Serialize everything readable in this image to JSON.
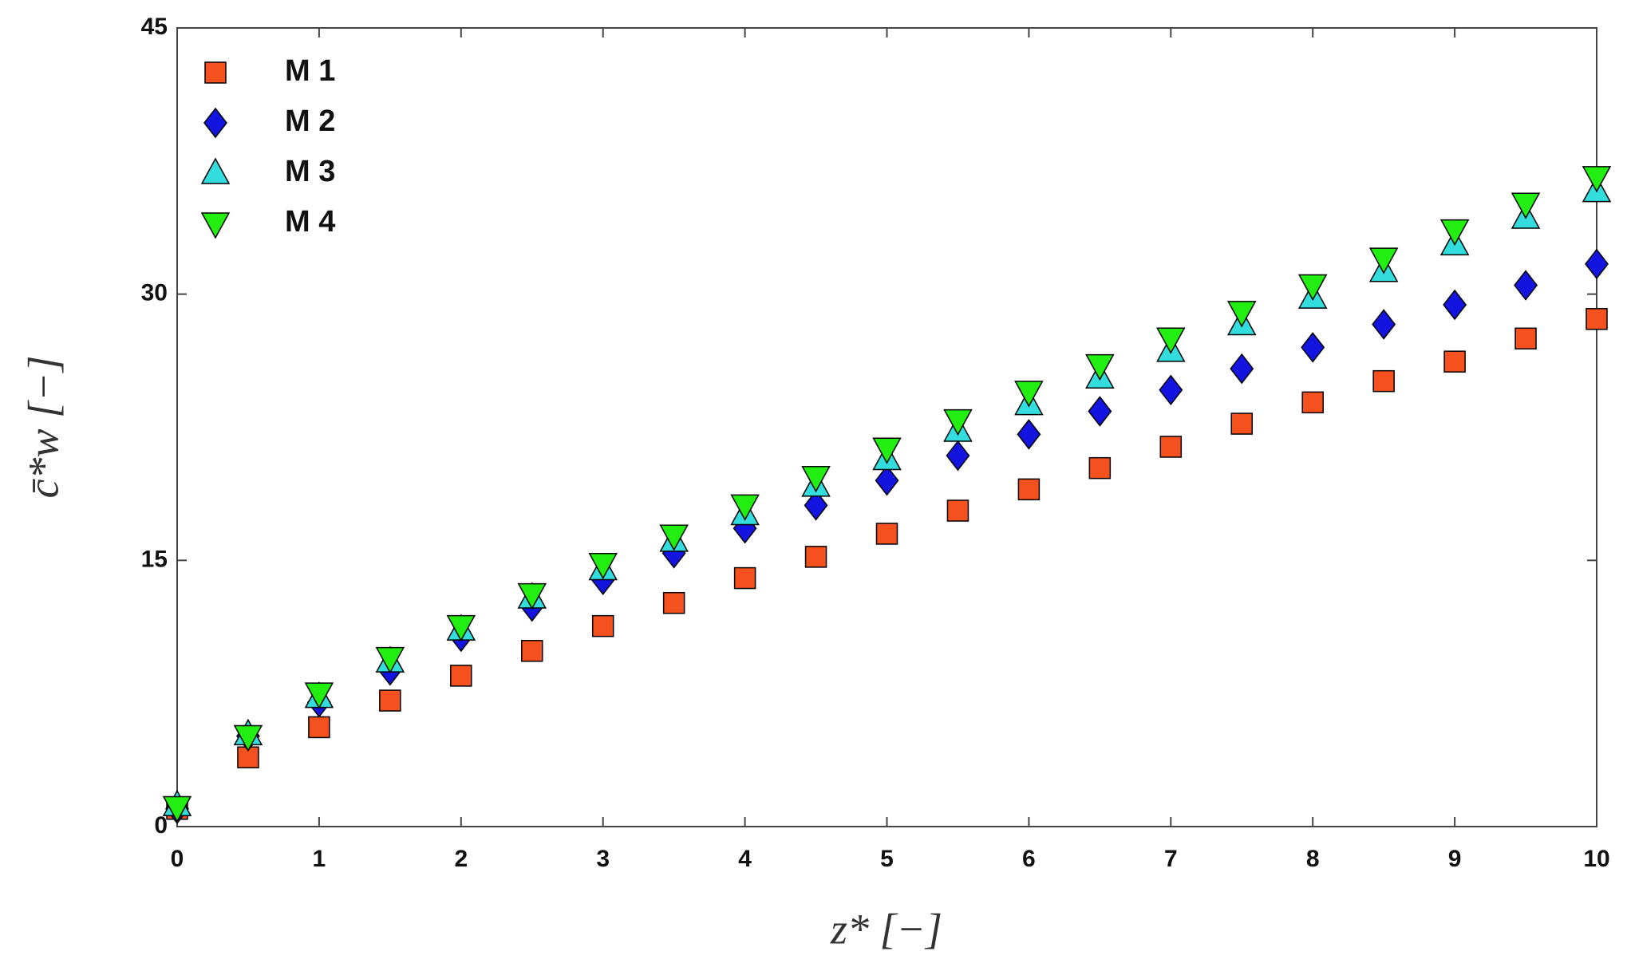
{
  "chart_data": {
    "type": "scatter",
    "xlabel": "z* [−]",
    "ylabel": "c̄*w [−]",
    "xlim": [
      0,
      10
    ],
    "ylim": [
      0,
      45
    ],
    "xticks": [
      0,
      1,
      2,
      3,
      4,
      5,
      6,
      7,
      8,
      9,
      10
    ],
    "yticks": [
      0,
      15,
      30,
      45
    ],
    "legend": "upper left",
    "x": [
      0,
      0.5,
      1,
      1.5,
      2,
      2.5,
      3,
      3.5,
      4,
      4.5,
      5,
      5.5,
      6,
      6.5,
      7,
      7.5,
      8,
      8.5,
      9,
      9.5,
      10
    ],
    "series": [
      {
        "name": "M 1",
        "marker": "square",
        "color": "#f4511e",
        "values": [
          1.0,
          3.9,
          5.6,
          7.1,
          8.5,
          9.9,
          11.3,
          12.6,
          14.0,
          15.2,
          16.5,
          17.8,
          19.0,
          20.2,
          21.4,
          22.7,
          23.9,
          25.1,
          26.2,
          27.5,
          28.6
        ]
      },
      {
        "name": "M 2",
        "marker": "diamond",
        "color": "#1414e0",
        "values": [
          1.0,
          5.1,
          7.0,
          8.8,
          10.7,
          12.4,
          13.9,
          15.4,
          16.8,
          18.1,
          19.5,
          20.9,
          22.1,
          23.4,
          24.6,
          25.8,
          27.0,
          28.3,
          29.4,
          30.5,
          31.7
        ]
      },
      {
        "name": "M 3",
        "marker": "triangle-up",
        "color": "#33dddd",
        "values": [
          1.2,
          5.2,
          7.3,
          9.3,
          11.1,
          12.9,
          14.5,
          16.1,
          17.6,
          19.2,
          20.7,
          22.3,
          23.8,
          25.3,
          26.8,
          28.3,
          29.8,
          31.3,
          32.8,
          34.3,
          35.8
        ]
      },
      {
        "name": "M 4",
        "marker": "triangle-down",
        "color": "#22ee11",
        "values": [
          1.1,
          5.1,
          7.5,
          9.5,
          11.3,
          13.1,
          14.8,
          16.4,
          18.1,
          19.7,
          21.3,
          22.9,
          24.5,
          26.0,
          27.5,
          29.0,
          30.5,
          32.0,
          33.6,
          35.1,
          36.6
        ]
      }
    ]
  }
}
